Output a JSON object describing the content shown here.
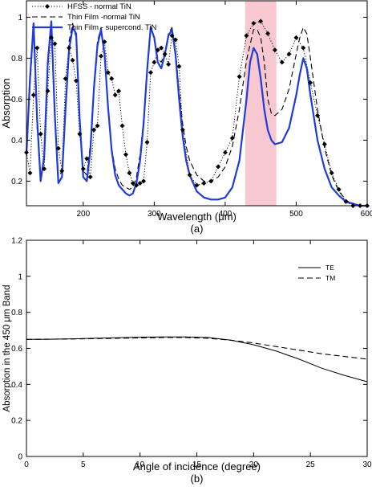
{
  "chart_data": [
    {
      "type": "line",
      "panel_label": "(a)",
      "xlabel": "Wavelength (μm)",
      "ylabel": "Absorption",
      "xlim": [
        120,
        600
      ],
      "ylim": [
        0.08,
        1.08
      ],
      "xticks": [
        200,
        300,
        400,
        500,
        600
      ],
      "yticks": [
        0.2,
        0.4,
        0.6,
        0.8,
        1
      ],
      "grid": false,
      "legend_position": "top-left",
      "highlight_band": {
        "x0": 428,
        "x1": 472,
        "color": "#f8c8d0"
      },
      "series": [
        {
          "name": "HFSS - normal TiN",
          "style": "dotted-with-diamond-markers",
          "color": "#000000",
          "points": [
            [
              120,
              0.34
            ],
            [
              125,
              0.24
            ],
            [
              130,
              0.62
            ],
            [
              135,
              0.85
            ],
            [
              140,
              0.43
            ],
            [
              145,
              0.26
            ],
            [
              150,
              0.64
            ],
            [
              155,
              0.9
            ],
            [
              160,
              0.87
            ],
            [
              165,
              0.36
            ],
            [
              170,
              0.25
            ],
            [
              175,
              0.7
            ],
            [
              180,
              0.85
            ],
            [
              185,
              0.79
            ],
            [
              190,
              0.69
            ],
            [
              195,
              0.43
            ],
            [
              200,
              0.26
            ],
            [
              205,
              0.31
            ],
            [
              210,
              0.22
            ],
            [
              215,
              0.45
            ],
            [
              220,
              0.47
            ],
            [
              225,
              0.81
            ],
            [
              230,
              0.88
            ],
            [
              235,
              0.73
            ],
            [
              240,
              0.7
            ],
            [
              245,
              0.62
            ],
            [
              250,
              0.64
            ],
            [
              255,
              0.47
            ],
            [
              260,
              0.33
            ],
            [
              265,
              0.24
            ],
            [
              270,
              0.19
            ],
            [
              275,
              0.18
            ],
            [
              280,
              0.19
            ],
            [
              285,
              0.2
            ],
            [
              290,
              0.39
            ],
            [
              295,
              0.73
            ],
            [
              300,
              0.78
            ],
            [
              305,
              0.84
            ],
            [
              310,
              0.85
            ],
            [
              315,
              0.82
            ],
            [
              320,
              0.77
            ],
            [
              325,
              0.91
            ],
            [
              330,
              0.89
            ],
            [
              335,
              0.76
            ],
            [
              340,
              0.45
            ],
            [
              350,
              0.23
            ],
            [
              360,
              0.18
            ],
            [
              370,
              0.19
            ],
            [
              380,
              0.2
            ],
            [
              390,
              0.27
            ],
            [
              400,
              0.34
            ],
            [
              410,
              0.41
            ],
            [
              420,
              0.71
            ],
            [
              430,
              0.91
            ],
            [
              440,
              0.97
            ],
            [
              450,
              0.98
            ],
            [
              460,
              0.92
            ],
            [
              470,
              0.84
            ],
            [
              480,
              0.78
            ],
            [
              490,
              0.82
            ],
            [
              500,
              0.9
            ],
            [
              510,
              0.85
            ],
            [
              520,
              0.68
            ],
            [
              530,
              0.52
            ],
            [
              540,
              0.38
            ],
            [
              550,
              0.24
            ],
            [
              560,
              0.16
            ],
            [
              570,
              0.1
            ],
            [
              580,
              0.08
            ],
            [
              590,
              0.07
            ],
            [
              600,
              0.06
            ]
          ]
        },
        {
          "name": "Thin Film -normal TiN",
          "style": "dashed",
          "color": "#000000",
          "points": [
            [
              120,
              0.33
            ],
            [
              125,
              0.66
            ],
            [
              130,
              0.96
            ],
            [
              135,
              0.46
            ],
            [
              140,
              0.21
            ],
            [
              145,
              0.3
            ],
            [
              150,
              0.75
            ],
            [
              155,
              0.98
            ],
            [
              160,
              0.55
            ],
            [
              165,
              0.22
            ],
            [
              170,
              0.25
            ],
            [
              175,
              0.58
            ],
            [
              180,
              0.88
            ],
            [
              185,
              0.97
            ],
            [
              190,
              0.9
            ],
            [
              195,
              0.5
            ],
            [
              200,
              0.25
            ],
            [
              205,
              0.23
            ],
            [
              210,
              0.38
            ],
            [
              215,
              0.67
            ],
            [
              220,
              0.88
            ],
            [
              225,
              0.95
            ],
            [
              230,
              0.81
            ],
            [
              235,
              0.55
            ],
            [
              240,
              0.36
            ],
            [
              245,
              0.26
            ],
            [
              250,
              0.21
            ],
            [
              255,
              0.18
            ],
            [
              260,
              0.17
            ],
            [
              265,
              0.16
            ],
            [
              270,
              0.17
            ],
            [
              275,
              0.22
            ],
            [
              280,
              0.33
            ],
            [
              285,
              0.5
            ],
            [
              290,
              0.75
            ],
            [
              295,
              0.95
            ],
            [
              300,
              0.9
            ],
            [
              305,
              0.8
            ],
            [
              310,
              0.78
            ],
            [
              315,
              0.83
            ],
            [
              320,
              0.92
            ],
            [
              325,
              0.95
            ],
            [
              330,
              0.84
            ],
            [
              335,
              0.64
            ],
            [
              340,
              0.48
            ],
            [
              345,
              0.37
            ],
            [
              350,
              0.3
            ],
            [
              360,
              0.23
            ],
            [
              370,
              0.2
            ],
            [
              380,
              0.2
            ],
            [
              390,
              0.22
            ],
            [
              400,
              0.27
            ],
            [
              410,
              0.37
            ],
            [
              420,
              0.55
            ],
            [
              430,
              0.79
            ],
            [
              440,
              0.94
            ],
            [
              445,
              0.94
            ],
            [
              450,
              0.9
            ],
            [
              455,
              0.78
            ],
            [
              460,
              0.6
            ],
            [
              465,
              0.53
            ],
            [
              470,
              0.52
            ],
            [
              480,
              0.55
            ],
            [
              490,
              0.65
            ],
            [
              500,
              0.82
            ],
            [
              505,
              0.9
            ],
            [
              510,
              0.95
            ],
            [
              515,
              0.92
            ],
            [
              520,
              0.8
            ],
            [
              530,
              0.55
            ],
            [
              540,
              0.36
            ],
            [
              550,
              0.23
            ],
            [
              560,
              0.15
            ],
            [
              570,
              0.11
            ],
            [
              580,
              0.08
            ],
            [
              590,
              0.07
            ],
            [
              600,
              0.05
            ]
          ]
        },
        {
          "name": "Thin Film - supercond. TiN",
          "style": "solid",
          "color": "#1f3bd9",
          "points": [
            [
              120,
              0.33
            ],
            [
              125,
              0.7
            ],
            [
              130,
              0.97
            ],
            [
              135,
              0.5
            ],
            [
              140,
              0.2
            ],
            [
              145,
              0.32
            ],
            [
              150,
              0.78
            ],
            [
              155,
              0.98
            ],
            [
              160,
              0.52
            ],
            [
              165,
              0.19
            ],
            [
              170,
              0.22
            ],
            [
              175,
              0.55
            ],
            [
              180,
              0.84
            ],
            [
              185,
              0.95
            ],
            [
              190,
              0.92
            ],
            [
              195,
              0.5
            ],
            [
              200,
              0.22
            ],
            [
              205,
              0.2
            ],
            [
              210,
              0.35
            ],
            [
              215,
              0.65
            ],
            [
              220,
              0.86
            ],
            [
              225,
              0.94
            ],
            [
              230,
              0.82
            ],
            [
              235,
              0.56
            ],
            [
              240,
              0.35
            ],
            [
              245,
              0.23
            ],
            [
              250,
              0.18
            ],
            [
              255,
              0.16
            ],
            [
              260,
              0.14
            ],
            [
              265,
              0.13
            ],
            [
              270,
              0.14
            ],
            [
              275,
              0.19
            ],
            [
              280,
              0.3
            ],
            [
              285,
              0.48
            ],
            [
              290,
              0.74
            ],
            [
              295,
              0.95
            ],
            [
              300,
              0.9
            ],
            [
              305,
              0.78
            ],
            [
              310,
              0.75
            ],
            [
              315,
              0.82
            ],
            [
              320,
              0.91
            ],
            [
              325,
              0.94
            ],
            [
              330,
              0.82
            ],
            [
              335,
              0.6
            ],
            [
              340,
              0.42
            ],
            [
              345,
              0.3
            ],
            [
              350,
              0.23
            ],
            [
              360,
              0.15
            ],
            [
              370,
              0.12
            ],
            [
              380,
              0.11
            ],
            [
              390,
              0.11
            ],
            [
              400,
              0.12
            ],
            [
              410,
              0.17
            ],
            [
              420,
              0.3
            ],
            [
              430,
              0.6
            ],
            [
              435,
              0.78
            ],
            [
              440,
              0.85
            ],
            [
              445,
              0.82
            ],
            [
              450,
              0.7
            ],
            [
              455,
              0.55
            ],
            [
              460,
              0.45
            ],
            [
              465,
              0.4
            ],
            [
              470,
              0.38
            ],
            [
              480,
              0.39
            ],
            [
              490,
              0.46
            ],
            [
              500,
              0.62
            ],
            [
              505,
              0.72
            ],
            [
              510,
              0.8
            ],
            [
              515,
              0.75
            ],
            [
              520,
              0.62
            ],
            [
              530,
              0.4
            ],
            [
              540,
              0.26
            ],
            [
              550,
              0.17
            ],
            [
              560,
              0.13
            ],
            [
              570,
              0.1
            ],
            [
              580,
              0.09
            ],
            [
              590,
              0.08
            ],
            [
              600,
              0.07
            ]
          ]
        }
      ]
    },
    {
      "type": "line",
      "panel_label": "(b)",
      "xlabel": "Angle of incidence (degree)",
      "ylabel": "Absorption in the 450 μm Band",
      "xlim": [
        0,
        30
      ],
      "ylim": [
        0,
        1.2
      ],
      "xticks": [
        0,
        5,
        10,
        15,
        20,
        25,
        30
      ],
      "yticks": [
        0,
        0.2,
        0.4,
        0.6,
        0.8,
        1,
        1.2
      ],
      "grid": false,
      "legend_position": "top-right",
      "series": [
        {
          "name": "TE",
          "style": "solid",
          "color": "#000000",
          "points": [
            [
              0,
              0.65
            ],
            [
              2,
              0.651
            ],
            [
              4,
              0.653
            ],
            [
              6,
              0.656
            ],
            [
              8,
              0.659
            ],
            [
              10,
              0.662
            ],
            [
              12,
              0.664
            ],
            [
              14,
              0.664
            ],
            [
              16,
              0.66
            ],
            [
              18,
              0.646
            ],
            [
              20,
              0.62
            ],
            [
              22,
              0.585
            ],
            [
              24,
              0.54
            ],
            [
              26,
              0.49
            ],
            [
              28,
              0.45
            ],
            [
              30,
              0.415
            ]
          ]
        },
        {
          "name": "TM",
          "style": "dashed",
          "color": "#000000",
          "points": [
            [
              0,
              0.65
            ],
            [
              2,
              0.651
            ],
            [
              4,
              0.652
            ],
            [
              6,
              0.654
            ],
            [
              8,
              0.656
            ],
            [
              10,
              0.658
            ],
            [
              12,
              0.66
            ],
            [
              14,
              0.66
            ],
            [
              16,
              0.656
            ],
            [
              18,
              0.645
            ],
            [
              20,
              0.63
            ],
            [
              22,
              0.61
            ],
            [
              24,
              0.59
            ],
            [
              26,
              0.57
            ],
            [
              28,
              0.555
            ],
            [
              30,
              0.54
            ]
          ]
        }
      ]
    }
  ]
}
